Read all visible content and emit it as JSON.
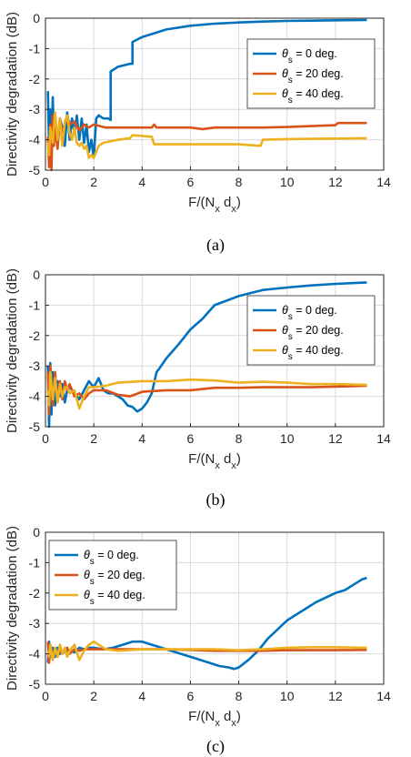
{
  "colors": {
    "blue": "#0072BD",
    "orange": "#D95319",
    "yellow": "#EDB120",
    "grid": "#d9d9d9",
    "axis": "#262626"
  },
  "chart_data": [
    {
      "type": "line",
      "caption": "(a)",
      "xlabel": "F/(N_x d_x)",
      "ylabel": "Directivity degradation (dB)",
      "xlim": [
        0,
        14
      ],
      "ylim": [
        -5,
        0
      ],
      "xticks": [
        0,
        2,
        4,
        6,
        8,
        10,
        12,
        14
      ],
      "yticks": [
        0,
        -1,
        -2,
        -3,
        -4,
        -5
      ],
      "grid": true,
      "legend_position": "top-right",
      "series": [
        {
          "name": "θs = 0 deg.",
          "color": "#0072BD",
          "x": [
            0.1,
            0.15,
            0.2,
            0.25,
            0.3,
            0.35,
            0.4,
            0.5,
            0.6,
            0.7,
            0.8,
            0.9,
            1.0,
            1.1,
            1.2,
            1.3,
            1.4,
            1.5,
            1.6,
            1.7,
            1.8,
            1.9,
            2.0,
            2.1,
            2.2,
            2.4,
            2.6,
            2.7,
            2.7,
            3.0,
            3.5,
            3.6,
            3.6,
            4.0,
            5.0,
            6.0,
            7.0,
            8.0,
            9.0,
            10.0,
            11.0,
            12.0,
            13.3
          ],
          "y": [
            -2.4,
            -4.3,
            -3.0,
            -4.6,
            -2.6,
            -3.8,
            -3.2,
            -4.2,
            -3.3,
            -3.6,
            -4.2,
            -3.1,
            -4.0,
            -3.3,
            -3.8,
            -3.2,
            -4.0,
            -3.3,
            -4.1,
            -3.5,
            -4.4,
            -4.0,
            -4.6,
            -3.3,
            -3.2,
            -3.3,
            -3.3,
            -3.35,
            -1.75,
            -1.6,
            -1.5,
            -1.5,
            -0.78,
            -0.62,
            -0.37,
            -0.25,
            -0.18,
            -0.14,
            -0.11,
            -0.09,
            -0.08,
            -0.07,
            -0.06
          ]
        },
        {
          "name": "θs = 20 deg.",
          "color": "#D95319",
          "x": [
            0.1,
            0.15,
            0.2,
            0.25,
            0.3,
            0.35,
            0.4,
            0.5,
            0.6,
            0.7,
            0.8,
            0.9,
            1.0,
            1.2,
            1.4,
            1.6,
            1.8,
            2.0,
            2.5,
            3.0,
            4.0,
            4.4,
            4.5,
            4.6,
            5.0,
            6.0,
            6.5,
            7.0,
            8.0,
            9.0,
            10.0,
            11.0,
            12.0,
            12.1,
            13.3
          ],
          "y": [
            -3.9,
            -4.9,
            -3.5,
            -5.0,
            -3.2,
            -4.2,
            -3.5,
            -4.3,
            -3.3,
            -3.8,
            -3.5,
            -3.2,
            -3.5,
            -3.4,
            -3.7,
            -3.5,
            -3.6,
            -3.5,
            -3.6,
            -3.6,
            -3.6,
            -3.6,
            -3.5,
            -3.6,
            -3.6,
            -3.6,
            -3.65,
            -3.6,
            -3.6,
            -3.6,
            -3.58,
            -3.55,
            -3.52,
            -3.45,
            -3.45
          ]
        },
        {
          "name": "θs = 40 deg.",
          "color": "#EDB120",
          "x": [
            0.1,
            0.15,
            0.2,
            0.3,
            0.4,
            0.5,
            0.6,
            0.7,
            0.8,
            0.9,
            1.0,
            1.1,
            1.2,
            1.3,
            1.4,
            1.5,
            1.6,
            1.7,
            1.8,
            1.9,
            2.0,
            2.1,
            2.2,
            2.4,
            3.0,
            3.5,
            3.6,
            4.4,
            4.5,
            5.0,
            6.0,
            7.0,
            8.0,
            8.9,
            9.0,
            10.0,
            11.0,
            12.0,
            13.3
          ],
          "y": [
            -4.1,
            -4.5,
            -3.6,
            -4.1,
            -3.1,
            -4.0,
            -3.3,
            -4.2,
            -3.4,
            -3.2,
            -3.8,
            -4.0,
            -3.6,
            -4.1,
            -4.2,
            -4.1,
            -4.3,
            -4.2,
            -4.6,
            -4.5,
            -4.6,
            -4.4,
            -4.2,
            -4.1,
            -4.0,
            -3.95,
            -3.85,
            -3.9,
            -4.15,
            -4.15,
            -4.15,
            -4.15,
            -4.15,
            -4.2,
            -4.0,
            -3.98,
            -3.97,
            -3.96,
            -3.95
          ]
        }
      ]
    },
    {
      "type": "line",
      "caption": "(b)",
      "xlabel": "F/(N_x d_x)",
      "ylabel": "Directivity degradation (dB)",
      "xlim": [
        0,
        14
      ],
      "ylim": [
        -5,
        0
      ],
      "xticks": [
        0,
        2,
        4,
        6,
        8,
        10,
        12,
        14
      ],
      "yticks": [
        0,
        -1,
        -2,
        -3,
        -4,
        -5
      ],
      "grid": true,
      "legend_position": "top-right",
      "series": [
        {
          "name": "θs = 0 deg.",
          "color": "#0072BD",
          "x": [
            0.1,
            0.15,
            0.2,
            0.25,
            0.3,
            0.4,
            0.5,
            0.6,
            0.7,
            0.8,
            0.9,
            1.0,
            1.2,
            1.4,
            1.6,
            1.8,
            2.0,
            2.2,
            2.4,
            2.6,
            2.8,
            3.0,
            3.2,
            3.4,
            3.6,
            3.8,
            4.0,
            4.2,
            4.4,
            4.6,
            4.7,
            5.0,
            5.5,
            6.0,
            6.5,
            7.0,
            7.5,
            8.0,
            8.5,
            9.0,
            10.0,
            11.0,
            12.0,
            13.3
          ],
          "y": [
            -3.0,
            -5.0,
            -2.9,
            -4.6,
            -3.2,
            -4.3,
            -3.5,
            -4.0,
            -3.6,
            -4.2,
            -3.8,
            -3.7,
            -3.9,
            -4.1,
            -3.8,
            -3.5,
            -3.7,
            -3.4,
            -3.8,
            -3.9,
            -3.9,
            -4.0,
            -4.1,
            -4.3,
            -4.35,
            -4.5,
            -4.4,
            -4.2,
            -3.9,
            -3.2,
            -3.1,
            -2.75,
            -2.3,
            -1.8,
            -1.45,
            -1.0,
            -0.85,
            -0.7,
            -0.6,
            -0.5,
            -0.42,
            -0.35,
            -0.3,
            -0.25
          ]
        },
        {
          "name": "θs = 20 deg.",
          "color": "#D95319",
          "x": [
            0.1,
            0.15,
            0.2,
            0.3,
            0.4,
            0.5,
            0.6,
            0.7,
            0.8,
            0.9,
            1.0,
            1.2,
            1.4,
            1.6,
            1.8,
            2.0,
            2.5,
            3.0,
            3.5,
            4.0,
            5.0,
            6.0,
            7.0,
            8.0,
            9.0,
            10.0,
            11.0,
            12.0,
            13.3
          ],
          "y": [
            -3.2,
            -4.6,
            -3.0,
            -4.3,
            -3.2,
            -4.2,
            -3.5,
            -4.1,
            -3.5,
            -3.8,
            -3.6,
            -4.0,
            -3.9,
            -4.1,
            -3.9,
            -3.8,
            -3.8,
            -3.95,
            -4.0,
            -3.85,
            -3.8,
            -3.8,
            -3.72,
            -3.72,
            -3.7,
            -3.7,
            -3.7,
            -3.68,
            -3.65
          ]
        },
        {
          "name": "θs = 40 deg.",
          "color": "#EDB120",
          "x": [
            0.1,
            0.15,
            0.2,
            0.3,
            0.4,
            0.5,
            0.6,
            0.7,
            0.8,
            0.9,
            1.0,
            1.2,
            1.4,
            1.6,
            1.8,
            2.0,
            2.5,
            3.0,
            4.0,
            5.0,
            6.0,
            7.0,
            8.0,
            9.0,
            10.0,
            11.0,
            12.0,
            13.3
          ],
          "y": [
            -3.8,
            -4.3,
            -3.2,
            -4.1,
            -3.4,
            -4.2,
            -3.6,
            -4.0,
            -3.7,
            -3.7,
            -3.9,
            -3.8,
            -4.4,
            -4.0,
            -3.7,
            -3.7,
            -3.65,
            -3.55,
            -3.5,
            -3.5,
            -3.45,
            -3.48,
            -3.55,
            -3.52,
            -3.55,
            -3.6,
            -3.6,
            -3.62
          ]
        }
      ]
    },
    {
      "type": "line",
      "caption": "(c)",
      "xlabel": "F/(N_x d_x)",
      "ylabel": "Directivity degradation (dB)",
      "xlim": [
        0,
        14
      ],
      "ylim": [
        -5,
        0
      ],
      "xticks": [
        0,
        2,
        4,
        6,
        8,
        10,
        12,
        14
      ],
      "yticks": [
        0,
        -1,
        -2,
        -3,
        -4,
        -5
      ],
      "grid": true,
      "legend_position": "top-left",
      "series": [
        {
          "name": "θs = 0 deg.",
          "color": "#0072BD",
          "x": [
            0.1,
            0.15,
            0.2,
            0.3,
            0.4,
            0.5,
            0.6,
            0.8,
            1.0,
            1.2,
            1.4,
            1.6,
            1.8,
            2.0,
            2.4,
            2.8,
            3.2,
            3.6,
            4.0,
            4.4,
            4.8,
            5.2,
            5.6,
            6.0,
            6.4,
            6.8,
            7.2,
            7.6,
            7.8,
            8.0,
            8.4,
            8.8,
            9.2,
            9.6,
            10.0,
            10.4,
            10.8,
            11.2,
            11.6,
            12.0,
            12.4,
            12.8,
            13.1,
            13.3
          ],
          "y": [
            -4.3,
            -3.6,
            -4.1,
            -3.8,
            -4.1,
            -3.8,
            -4.0,
            -3.9,
            -3.9,
            -3.95,
            -3.8,
            -3.85,
            -3.8,
            -3.8,
            -3.85,
            -3.8,
            -3.7,
            -3.6,
            -3.6,
            -3.7,
            -3.8,
            -3.9,
            -4.0,
            -4.1,
            -4.2,
            -4.3,
            -4.4,
            -4.45,
            -4.5,
            -4.45,
            -4.2,
            -3.9,
            -3.5,
            -3.2,
            -2.9,
            -2.7,
            -2.5,
            -2.3,
            -2.15,
            -2.0,
            -1.9,
            -1.7,
            -1.55,
            -1.5
          ]
        },
        {
          "name": "θs = 20 deg.",
          "color": "#D95319",
          "x": [
            0.1,
            0.15,
            0.2,
            0.3,
            0.4,
            0.5,
            0.6,
            0.7,
            0.8,
            0.9,
            1.0,
            1.2,
            1.4,
            1.6,
            2.0,
            3.0,
            4.0,
            5.0,
            6.0,
            7.0,
            8.0,
            9.0,
            10.0,
            11.0,
            12.0,
            13.3
          ],
          "y": [
            -3.6,
            -4.3,
            -3.7,
            -4.2,
            -3.8,
            -4.1,
            -3.8,
            -4.0,
            -3.9,
            -3.8,
            -4.0,
            -3.85,
            -3.9,
            -3.85,
            -3.85,
            -3.85,
            -3.85,
            -3.85,
            -3.87,
            -3.9,
            -3.9,
            -3.9,
            -3.88,
            -3.88,
            -3.88,
            -3.87
          ]
        },
        {
          "name": "θs = 40 deg.",
          "color": "#EDB120",
          "x": [
            0.1,
            0.15,
            0.2,
            0.3,
            0.4,
            0.5,
            0.6,
            0.7,
            0.8,
            0.9,
            1.0,
            1.2,
            1.4,
            1.6,
            1.8,
            2.0,
            2.2,
            2.5,
            3.0,
            4.0,
            5.0,
            6.0,
            7.0,
            8.0,
            9.0,
            10.0,
            11.0,
            12.0,
            13.3
          ],
          "y": [
            -3.9,
            -4.1,
            -3.7,
            -4.2,
            -3.8,
            -4.1,
            -3.7,
            -4.0,
            -3.8,
            -4.1,
            -3.9,
            -3.7,
            -4.2,
            -3.9,
            -3.7,
            -3.6,
            -3.7,
            -3.85,
            -3.9,
            -3.85,
            -3.85,
            -3.85,
            -3.85,
            -3.88,
            -3.85,
            -3.8,
            -3.78,
            -3.78,
            -3.8
          ]
        }
      ]
    }
  ]
}
